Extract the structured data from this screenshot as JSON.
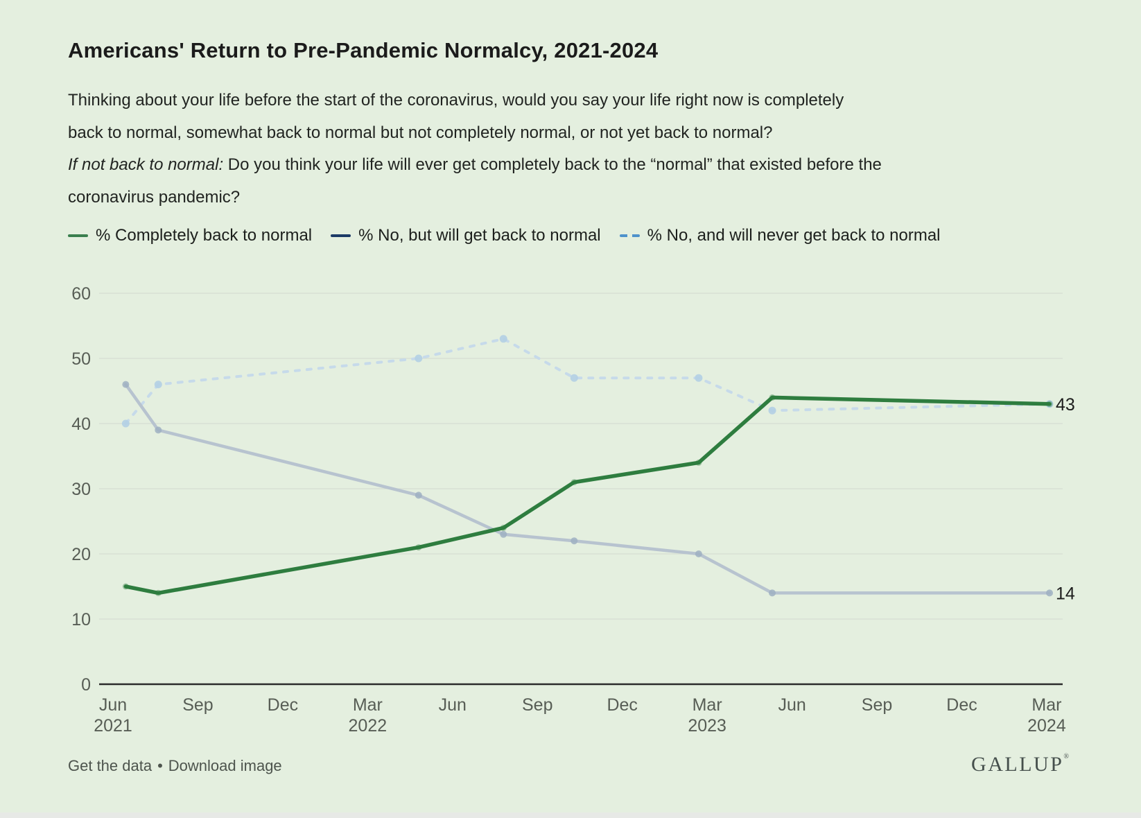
{
  "theme": {
    "card_background": "#e4efdf",
    "grid_color": "#d5ddd2",
    "axis_color": "#2b2b2b",
    "axis_label_color": "#575d55",
    "end_label_color": "#1c1c1c",
    "strip_color": "#e7e9e6"
  },
  "header": {
    "title": "Americans' Return to Pre-Pandemic Normalcy, 2021-2024",
    "q1a": "Thinking about your life before the start of the coronavirus, would you say your life right now is completely",
    "q1b": "back to normal, somewhat back to normal but not completely normal, or not yet back to normal?",
    "q2_italic": "If not back to normal:",
    "q2a": " Do you think your life will ever get completely back to the “normal” that existed before the",
    "q2b": "coronavirus pandemic?"
  },
  "chart_data": {
    "type": "line",
    "title": "Americans' Return to Pre-Pandemic Normalcy, 2021-2024",
    "ylim": [
      0,
      60
    ],
    "y_ticks": [
      0,
      10,
      20,
      30,
      40,
      50,
      60
    ],
    "grid": "horizontal",
    "legend_position": "top",
    "x_axis_ticks": [
      {
        "month": "Jun",
        "year": "2021"
      },
      {
        "month": "Sep"
      },
      {
        "month": "Dec"
      },
      {
        "month": "Mar",
        "year": "2022"
      },
      {
        "month": "Jun"
      },
      {
        "month": "Sep"
      },
      {
        "month": "Dec"
      },
      {
        "month": "Mar",
        "year": "2023"
      },
      {
        "month": "Jun"
      },
      {
        "month": "Sep"
      },
      {
        "month": "Dec"
      },
      {
        "month": "Mar",
        "year": "2024"
      }
    ],
    "x_month_offsets_from_jun_2021": [
      0.45,
      1.6,
      10.8,
      13.8,
      16.3,
      20.7,
      23.3,
      33.1
    ],
    "series": [
      {
        "name": "% Completely back to normal",
        "values": [
          15,
          14,
          21,
          24,
          31,
          34,
          44,
          43
        ],
        "end_label": "43",
        "legend_color": "#3a7f4e",
        "line_color": "#2e7d3f",
        "dash": false,
        "width": 5.5,
        "dot_color": "#2e7d3f",
        "dot_opacity": 0.4,
        "dot_radius": 4.5
      },
      {
        "name": "% No, but will get back to normal",
        "values": [
          46,
          39,
          29,
          23,
          22,
          20,
          14,
          14
        ],
        "end_label": "14",
        "legend_color": "#1b3a66",
        "line_color": "#b7c3cf",
        "dash": false,
        "width": 4.5,
        "dot_color": "#9fb0c2",
        "dot_opacity": 0.85,
        "dot_radius": 5
      },
      {
        "name": "% No, and will never get back to normal",
        "values": [
          40,
          46,
          50,
          53,
          47,
          47,
          42,
          43
        ],
        "end_label": "",
        "legend_color": "#4e92cb",
        "line_color": "#c6daea",
        "dash": true,
        "width": 4,
        "dot_color": "#b3cfe4",
        "dot_opacity": 0.9,
        "dot_radius": 5.5
      }
    ]
  },
  "footer": {
    "link_get_data": "Get the data",
    "separator": "•",
    "link_download": "Download image",
    "logo_text": "GALLUP",
    "logo_reg": "®"
  }
}
